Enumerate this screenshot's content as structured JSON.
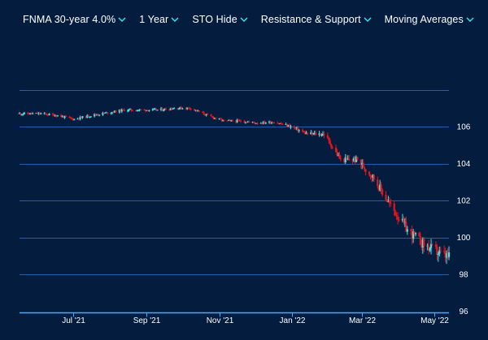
{
  "toolbar": {
    "items": [
      {
        "label": "FNMA 30-year 4.0%"
      },
      {
        "label": "1 Year"
      },
      {
        "label": "STO Hide"
      },
      {
        "label": "Resistance & Support"
      },
      {
        "label": "Moving Averages"
      }
    ]
  },
  "colors": {
    "background": "#041d3f",
    "up": "#3ee6ec",
    "down": "#e3141a",
    "grid": "#1f5fae",
    "axis": "#4aa8ff"
  },
  "chart_data": {
    "type": "candlestick",
    "title": "",
    "xlabel": "",
    "ylabel": "",
    "ylim": [
      96,
      108
    ],
    "yticks": [
      96,
      98,
      100,
      102,
      104,
      106
    ],
    "xticks": [
      "Jul '21",
      "Sep '21",
      "Nov '21",
      "Jan '22",
      "Mar '22",
      "May '22"
    ],
    "grid": true,
    "x_range": [
      "2021-05-17",
      "2022-05-13"
    ],
    "x": [
      "2021-05-21",
      "2021-06-04",
      "2021-06-18",
      "2021-07-02",
      "2021-07-16",
      "2021-07-30",
      "2021-08-13",
      "2021-08-27",
      "2021-09-10",
      "2021-09-24",
      "2021-10-08",
      "2021-10-22",
      "2021-11-05",
      "2021-11-19",
      "2021-12-03",
      "2021-12-17",
      "2021-12-31",
      "2022-01-14",
      "2022-01-28",
      "2022-02-11",
      "2022-02-25",
      "2022-03-11",
      "2022-03-25",
      "2022-04-08",
      "2022-04-22",
      "2022-05-06",
      "2022-05-13"
    ],
    "close": [
      106.7,
      106.7,
      106.6,
      106.4,
      106.6,
      106.75,
      106.9,
      106.9,
      106.9,
      107.0,
      107.0,
      106.6,
      106.3,
      106.3,
      106.2,
      106.25,
      106.0,
      105.6,
      105.6,
      104.2,
      104.2,
      103.2,
      101.7,
      100.4,
      99.6,
      99.1,
      98.9
    ]
  }
}
